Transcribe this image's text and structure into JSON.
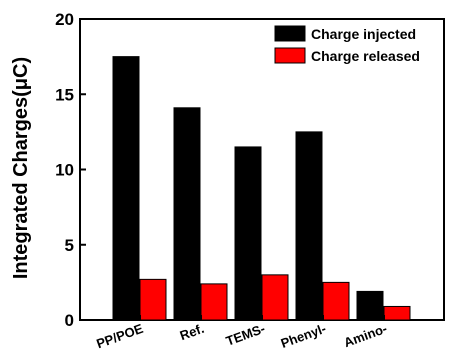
{
  "chart_data": {
    "type": "bar",
    "title": "",
    "xlabel": "",
    "ylabel": "Integrated Charges(μC)",
    "ylim": [
      0,
      20
    ],
    "yticks": [
      0,
      5,
      10,
      15,
      20
    ],
    "ytick_labels": [
      "0",
      "5",
      "10",
      "15",
      "20"
    ],
    "categories": [
      "PP/POE",
      "Ref.",
      "TEMS-",
      "Phenyl-",
      "Amino-"
    ],
    "series": [
      {
        "name": "Charge injected",
        "color": "#000000",
        "values": [
          17.5,
          14.1,
          11.5,
          12.5,
          1.9
        ]
      },
      {
        "name": "Charge released",
        "color": "#ff0000",
        "values": [
          2.7,
          2.4,
          3.0,
          2.5,
          0.9
        ]
      }
    ],
    "grid": false,
    "legend": "top-right"
  }
}
